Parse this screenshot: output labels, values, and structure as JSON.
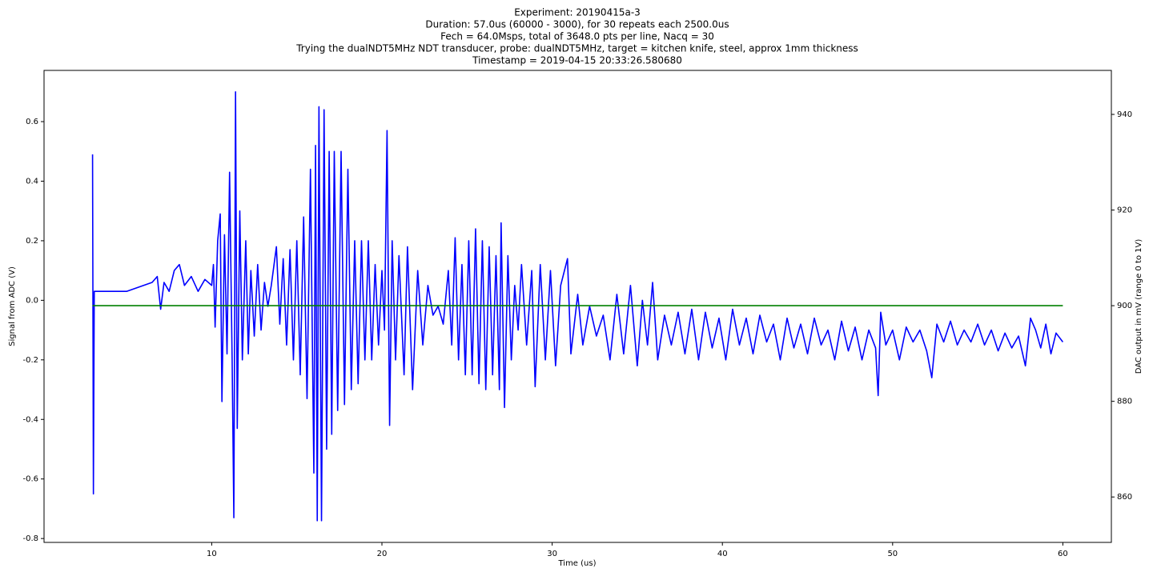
{
  "chart_data": {
    "type": "line",
    "title": [
      "Experiment: 20190415a-3",
      "Duration: 57.0us (60000 - 3000), for 30 repeats each 2500.0us",
      "Fech = 64.0Msps, total of 3648.0 pts per line, Nacq = 30",
      "Trying the dualNDT5MHz NDT transducer, probe: dualNDT5MHz, target = kitchen knife, steel, approx 1mm thickness",
      "Timestamp = 2019-04-15 20:33:26.580680"
    ],
    "xlabel": "Time (us)",
    "ylabel": "Signal from ADC (V)",
    "y2label": "DAC output in mV (range 0 to 1V)",
    "ylabel_color": "#0000ff",
    "y2label_color": "#008000",
    "xlim": [
      0.15,
      62.85
    ],
    "xticks": [
      10,
      20,
      30,
      40,
      50,
      60
    ],
    "ylim": [
      -0.813,
      0.772
    ],
    "yticks": [
      -0.8,
      -0.6,
      -0.4,
      -0.2,
      {
        "value": 0,
        "label": "0.0"
      },
      0.2,
      0.4,
      0.6
    ],
    "y2lim": [
      850.5,
      949.2
    ],
    "y2ticks": [
      860,
      880,
      900,
      920,
      940
    ],
    "grid": false,
    "series": [
      {
        "color": "#0000ff",
        "x": [
          3.0,
          3.05,
          3.1,
          4,
          5,
          5.5,
          6,
          6.5,
          6.8,
          7,
          7.2,
          7.5,
          7.8,
          8.1,
          8.4,
          8.8,
          9.2,
          9.6,
          10.0,
          10.1,
          10.2,
          10.35,
          10.5,
          10.6,
          10.75,
          10.9,
          11.05,
          11.2,
          11.3,
          11.4,
          11.5,
          11.65,
          11.8,
          12,
          12.15,
          12.3,
          12.5,
          12.7,
          12.9,
          13.1,
          13.3,
          13.5,
          13.8,
          14,
          14.2,
          14.4,
          14.6,
          14.8,
          15,
          15.2,
          15.4,
          15.6,
          15.8,
          16,
          16.1,
          16.2,
          16.3,
          16.45,
          16.6,
          16.75,
          16.9,
          17.05,
          17.2,
          17.4,
          17.6,
          17.8,
          18,
          18.2,
          18.4,
          18.6,
          18.8,
          19,
          19.2,
          19.4,
          19.6,
          19.8,
          20,
          20.15,
          20.3,
          20.45,
          20.6,
          20.8,
          21,
          21.3,
          21.5,
          21.8,
          22.1,
          22.4,
          22.7,
          23,
          23.3,
          23.6,
          23.9,
          24.1,
          24.3,
          24.5,
          24.7,
          24.9,
          25.1,
          25.3,
          25.5,
          25.7,
          25.9,
          26.1,
          26.3,
          26.5,
          26.7,
          26.9,
          27.0,
          27.2,
          27.4,
          27.6,
          27.8,
          28,
          28.2,
          28.5,
          28.8,
          29,
          29.3,
          29.6,
          29.9,
          30.2,
          30.5,
          30.9,
          31.1,
          31.5,
          31.8,
          32.2,
          32.6,
          33,
          33.4,
          33.8,
          34.2,
          34.6,
          35,
          35.3,
          35.6,
          35.9,
          36.2,
          36.6,
          37,
          37.4,
          37.8,
          38.2,
          38.6,
          39,
          39.4,
          39.8,
          40.2,
          40.6,
          41,
          41.4,
          41.8,
          42.2,
          42.6,
          43,
          43.4,
          43.8,
          44.2,
          44.6,
          45,
          45.4,
          45.8,
          46.2,
          46.6,
          47,
          47.4,
          47.8,
          48.2,
          48.6,
          49,
          49.15,
          49.3,
          49.6,
          50,
          50.4,
          50.8,
          51.2,
          51.6,
          52,
          52.3,
          52.6,
          53,
          53.4,
          53.8,
          54.2,
          54.6,
          55,
          55.4,
          55.8,
          56.2,
          56.6,
          57,
          57.4,
          57.8,
          58.1,
          58.4,
          58.7,
          59,
          59.3,
          59.6,
          60
        ],
        "values": [
          0.49,
          -0.65,
          0.03,
          0.03,
          0.03,
          0.04,
          0.05,
          0.06,
          0.08,
          -0.03,
          0.06,
          0.03,
          0.1,
          0.12,
          0.05,
          0.08,
          0.03,
          0.07,
          0.05,
          0.12,
          -0.09,
          0.2,
          0.29,
          -0.34,
          0.22,
          -0.18,
          0.43,
          -0.2,
          -0.73,
          0.7,
          -0.43,
          0.3,
          -0.2,
          0.2,
          -0.18,
          0.1,
          -0.12,
          0.12,
          -0.1,
          0.06,
          -0.02,
          0.05,
          0.18,
          -0.08,
          0.14,
          -0.15,
          0.17,
          -0.2,
          0.2,
          -0.25,
          0.28,
          -0.33,
          0.44,
          -0.58,
          0.52,
          -0.74,
          0.65,
          -0.74,
          0.64,
          -0.5,
          0.5,
          -0.45,
          0.5,
          -0.37,
          0.5,
          -0.35,
          0.44,
          -0.3,
          0.2,
          -0.28,
          0.2,
          -0.2,
          0.2,
          -0.2,
          0.12,
          -0.15,
          0.1,
          -0.1,
          0.57,
          -0.42,
          0.2,
          -0.2,
          0.15,
          -0.25,
          0.18,
          -0.3,
          0.1,
          -0.15,
          0.05,
          -0.05,
          -0.02,
          -0.08,
          0.1,
          -0.15,
          0.21,
          -0.2,
          0.12,
          -0.25,
          0.2,
          -0.25,
          0.24,
          -0.28,
          0.2,
          -0.3,
          0.18,
          -0.25,
          0.15,
          -0.3,
          0.26,
          -0.36,
          0.15,
          -0.2,
          0.05,
          -0.1,
          0.12,
          -0.15,
          0.1,
          -0.29,
          0.12,
          -0.2,
          0.1,
          -0.22,
          0.05,
          0.14,
          -0.18,
          0.02,
          -0.15,
          -0.02,
          -0.12,
          -0.05,
          -0.2,
          0.02,
          -0.18,
          0.05,
          -0.22,
          0.0,
          -0.15,
          0.06,
          -0.2,
          -0.05,
          -0.15,
          -0.04,
          -0.18,
          -0.03,
          -0.2,
          -0.04,
          -0.16,
          -0.06,
          -0.2,
          -0.03,
          -0.15,
          -0.06,
          -0.18,
          -0.05,
          -0.14,
          -0.08,
          -0.2,
          -0.06,
          -0.16,
          -0.08,
          -0.18,
          -0.06,
          -0.15,
          -0.1,
          -0.2,
          -0.07,
          -0.17,
          -0.09,
          -0.2,
          -0.1,
          -0.16,
          -0.32,
          -0.04,
          -0.15,
          -0.1,
          -0.2,
          -0.09,
          -0.14,
          -0.1,
          -0.17,
          -0.26,
          -0.08,
          -0.14,
          -0.07,
          -0.15,
          -0.1,
          -0.14,
          -0.08,
          -0.15,
          -0.1,
          -0.17,
          -0.11,
          -0.16,
          -0.12,
          -0.22,
          -0.06,
          -0.1,
          -0.16,
          -0.08,
          -0.18,
          -0.11,
          -0.14
        ]
      },
      {
        "color": "#008000",
        "axis": "y2",
        "x": [
          3,
          60
        ],
        "values": [
          900,
          900
        ]
      }
    ]
  }
}
